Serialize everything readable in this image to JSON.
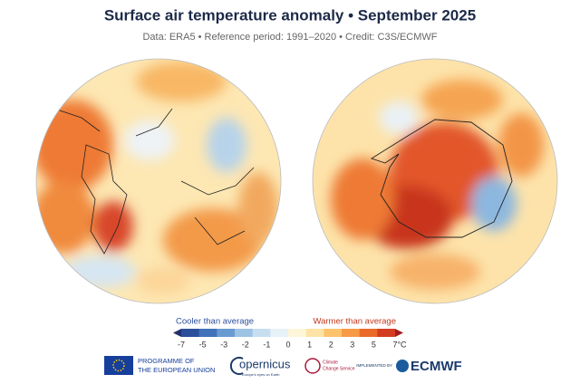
{
  "header": {
    "title": "Surface air temperature anomaly • September 2025",
    "subtitle": "Data: ERA5 • Reference period: 1991–2020 • Credit: C3S/ECMWF"
  },
  "legend": {
    "cooler": "Cooler than average",
    "warmer": "Warmer than average",
    "ticks": [
      "-7",
      "-5",
      "-3",
      "-2",
      "-1",
      "0",
      "1",
      "2",
      "3",
      "5",
      "7°C"
    ],
    "colors": [
      "#23306e",
      "#2c4f9c",
      "#3f72b8",
      "#6a9bd0",
      "#9cc2e4",
      "#c7def0",
      "#e6f1f8",
      "#fdf6d8",
      "#fde4a6",
      "#fcc36c",
      "#f79a45",
      "#ea6a2b",
      "#d33c20",
      "#a51b1b"
    ]
  },
  "footer": {
    "eu": [
      "PROGRAMME OF",
      "THE EUROPEAN UNION"
    ],
    "copernicus": "opernicus",
    "copernicus_sub": "Europe's eyes on Earth",
    "c3s": [
      "Climate",
      "Change Service"
    ],
    "implemented": "IMPLEMENTED BY",
    "ecmwf": "ECMWF"
  }
}
